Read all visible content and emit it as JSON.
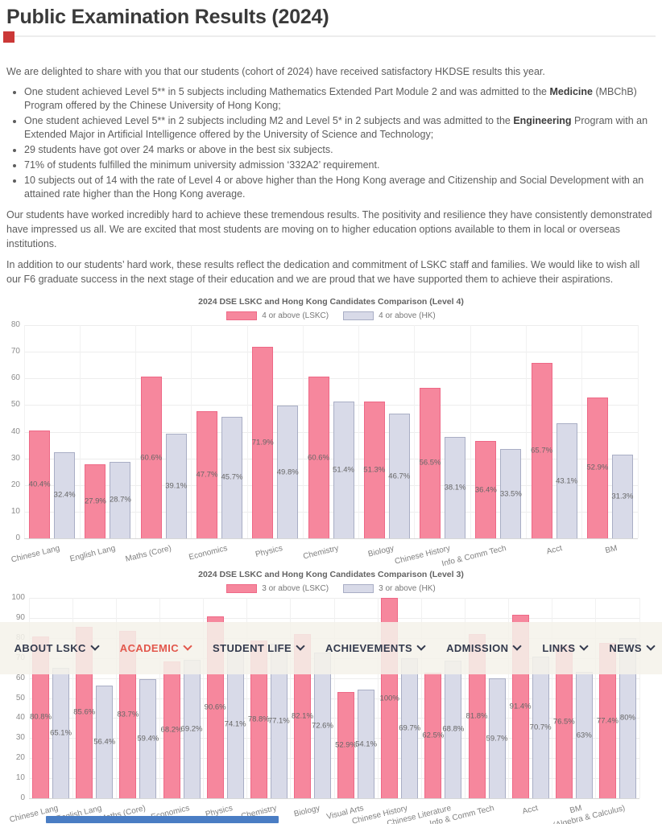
{
  "page": {
    "title": "Public Examination Results (2024)"
  },
  "intro": "We are delighted to share with you that our students (cohort of 2024) have received satisfactory HKDSE results this year.",
  "bullets": [
    {
      "pre": "One student achieved Level 5** in 5 subjects including Mathematics Extended Part Module 2 and was admitted to the ",
      "bold": "Medicine",
      "post": " (MBChB) Program offered by the Chinese University of Hong Kong;"
    },
    {
      "pre": "One student achieved Level 5** in 2 subjects including M2 and Level 5* in 2 subjects and was admitted to the ",
      "bold": "Engineering",
      "post": " Program with an Extended Major in Artificial Intelligence offered by the University of Science and Technology;"
    },
    {
      "pre": "29 students have got over 24 marks or above in the best six subjects.",
      "bold": "",
      "post": ""
    },
    {
      "pre": "71% of students fulfilled the minimum university admission ‘332A2’ requirement.",
      "bold": "",
      "post": ""
    },
    {
      "pre": "10 subjects out of 14 with the rate of Level 4 or above higher than the Hong Kong average and Citizenship and Social Development with an attained rate higher than the Hong Kong average.",
      "bold": "",
      "post": ""
    }
  ],
  "paragraphs": [
    "Our students have worked incredibly hard to achieve these tremendous results. The positivity and resilience they have consistently demonstrated have impressed us all. We are excited that most students are moving on to higher education options available to them in local or overseas institutions.",
    "In addition to our students’ hard work, these results reflect the dedication and commitment of LSKC staff and families. We would like to wish all our F6 graduate success in the next stage of their education and we are proud that we have supported them to achieve their aspirations."
  ],
  "nav": {
    "text_color": "#333a4d",
    "active_color": "#e2574c",
    "items": [
      {
        "label": "ABOUT LSKC",
        "active": false
      },
      {
        "label": "ACADEMIC",
        "active": true
      },
      {
        "label": "STUDENT LIFE",
        "active": false
      },
      {
        "label": "ACHIEVEMENTS",
        "active": false
      },
      {
        "label": "ADMISSION",
        "active": false
      },
      {
        "label": "LINKS",
        "active": false
      },
      {
        "label": "NEWS",
        "active": false
      }
    ]
  },
  "chart_data": [
    {
      "type": "bar",
      "title": "2024 DSE LSKC and Hong Kong Candidates Comparison (Level 4)",
      "categories": [
        "Chinese Lang",
        "English Lang",
        "Maths (Core)",
        "Economics",
        "Physics",
        "Chemistry",
        "Biology",
        "Chinese History",
        "Info & Comm Tech",
        "Acct",
        "BM"
      ],
      "series": [
        {
          "name": "4 or above (LSKC)",
          "fill": "#f6879d",
          "border": "#ee6886",
          "values": [
            40.4,
            27.9,
            60.6,
            47.7,
            71.9,
            60.6,
            51.3,
            56.5,
            36.4,
            65.7,
            52.9
          ],
          "labels": [
            "40.4%",
            "27.9%",
            "60.6%",
            "47.7%",
            "71.9%",
            "60.6%",
            "51.3%",
            "56.5%",
            "36.4%",
            "65.7%",
            "52.9%"
          ]
        },
        {
          "name": "4 or above (HK)",
          "fill": "#d8dae8",
          "border": "#a9aec5",
          "values": [
            32.4,
            28.7,
            39.1,
            45.7,
            49.8,
            51.4,
            46.7,
            38.1,
            33.5,
            43.1,
            31.3
          ],
          "labels": [
            "32.4%",
            "28.7%",
            "39.1%",
            "45.7%",
            "49.8%",
            "51.4%",
            "46.7%",
            "38.1%",
            "33.5%",
            "43.1%",
            "31.3%"
          ]
        }
      ],
      "xlabel": "",
      "ylabel": "",
      "ylim": [
        0,
        80
      ],
      "ytick_step": 10,
      "grid": true,
      "legend_position": "top",
      "x_tick_rotation": -14
    },
    {
      "type": "bar",
      "title": "2024 DSE LSKC and Hong Kong Candidates Comparison (Level 3)",
      "categories": [
        "Chinese Lang",
        "English Lang",
        "Maths (Core)",
        "Economics",
        "Physics",
        "Chemistry",
        "Biology",
        "Visual Arts",
        "Chinese History",
        "Chinese Literature",
        "Info & Comm Tech",
        "Acct",
        "BM",
        "Maths (Algebra & Calculus)"
      ],
      "series": [
        {
          "name": "3 or above (LSKC)",
          "fill": "#f6879d",
          "border": "#ee6886",
          "values": [
            80.8,
            85.6,
            83.7,
            68.2,
            90.6,
            78.8,
            82.1,
            52.9,
            100,
            62.5,
            81.8,
            91.4,
            76.5,
            77.4
          ],
          "labels": [
            "80.8%",
            "85.6%",
            "83.7%",
            "68.2%",
            "90.6%",
            "78.8%",
            "82.1%",
            "52.9%",
            "100%",
            "62.5%",
            "81.8%",
            "91.4%",
            "76.5%",
            "77.4%"
          ]
        },
        {
          "name": "3 or above (HK)",
          "fill": "#d8dae8",
          "border": "#a9aec5",
          "values": [
            65.1,
            56.4,
            59.4,
            69.2,
            74.1,
            77.1,
            72.6,
            54.1,
            69.7,
            68.8,
            59.7,
            70.7,
            63,
            80
          ],
          "labels": [
            "65.1%",
            "56.4%",
            "59.4%",
            "69.2%",
            "74.1%",
            "77.1%",
            "72.6%",
            "54.1%",
            "69.7%",
            "68.8%",
            "59.7%",
            "70.7%",
            "63%",
            "80%"
          ]
        }
      ],
      "xlabel": "",
      "ylabel": "",
      "ylim": [
        0,
        100
      ],
      "ytick_step": 10,
      "grid": true,
      "legend_position": "top",
      "x_tick_rotation": -14
    }
  ],
  "decorations": {
    "red_square_color": "#cb3837",
    "scrollbar_thumb_color": "#4a7dc4"
  }
}
